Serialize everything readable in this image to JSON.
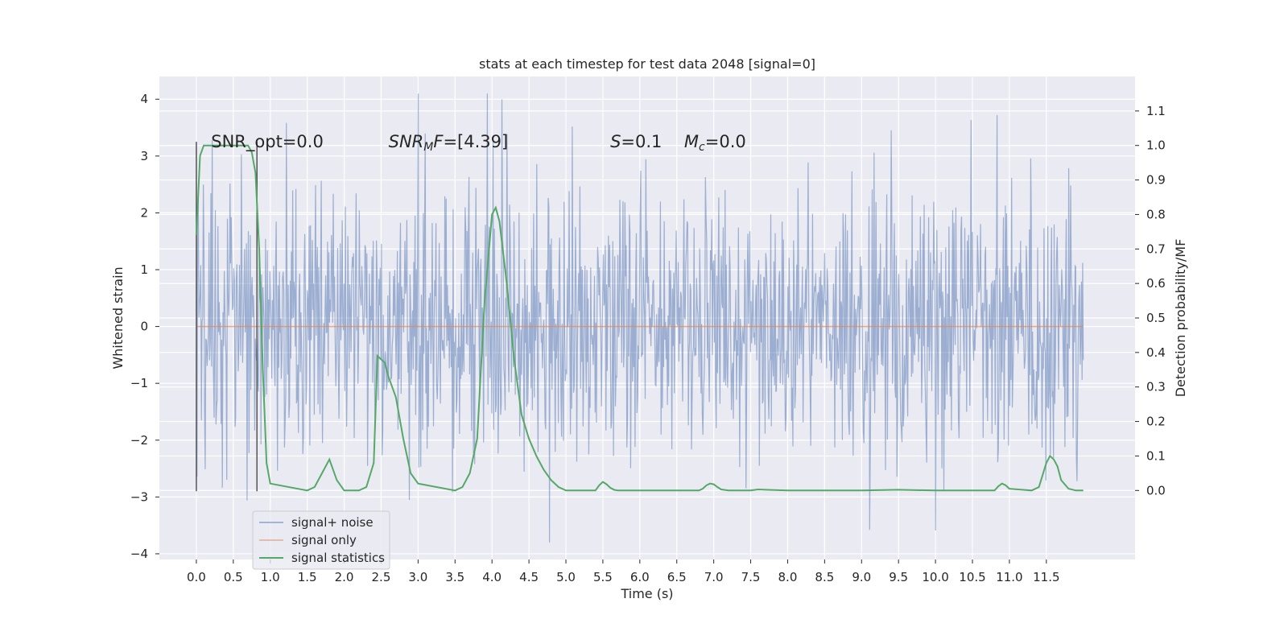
{
  "chart_data": {
    "type": "line",
    "title": "stats at each timestep for test data 2048 [signal=0]",
    "xlabel": "Time (s)",
    "ylabel": "Whitened strain",
    "y2label": "Detection probability/MF",
    "xlim": [
      -0.5,
      12.7
    ],
    "ylim": [
      -4.1,
      4.4
    ],
    "y2lim": [
      -0.2,
      1.2
    ],
    "x_ticks": [
      0.0,
      0.5,
      1.0,
      1.5,
      2.0,
      2.5,
      3.0,
      3.5,
      4.0,
      4.5,
      5.0,
      5.5,
      6.0,
      6.5,
      7.0,
      7.5,
      8.0,
      8.5,
      9.0,
      9.5,
      10.0,
      10.5,
      11.0,
      11.5
    ],
    "x_tick_labels": [
      "0.0",
      "0.5",
      "1.0",
      "1.5",
      "2.0",
      "2.5",
      "3.0",
      "3.5",
      "4.0",
      "4.5",
      "5.0",
      "5.5",
      "6.0",
      "6.5",
      "7.0",
      "7.5",
      "8.0",
      "8.5",
      "9.0",
      "9.5",
      "10.0",
      "10.5",
      "11.0",
      "11.5"
    ],
    "y_ticks": [
      4,
      3,
      2,
      1,
      0,
      -1,
      -2,
      -3,
      -4
    ],
    "y_tick_labels": [
      "4",
      "3",
      "2",
      "1",
      "0",
      "−1",
      "−2",
      "−3",
      "−4"
    ],
    "y2_ticks": [
      1.1,
      1.0,
      0.9,
      0.8,
      0.7,
      0.6,
      0.5,
      0.4,
      0.3,
      0.2,
      0.1,
      0.0
    ],
    "y2_tick_labels": [
      "1.1",
      "1.0",
      "0.9",
      "0.8",
      "0.7",
      "0.6",
      "0.5",
      "0.4",
      "0.3",
      "0.2",
      "0.1",
      "0.0"
    ],
    "grid": true,
    "legend_position": "lower-left",
    "noise_series": {
      "name": "signal+ noise",
      "color": "#4c72b0",
      "t_start": 0.0,
      "t_end": 12.0,
      "samples": 1400,
      "std": 1.25
    },
    "signal_only": {
      "name": "signal only",
      "color": "#dd8452",
      "value": 0
    },
    "statistics_series": {
      "name": "signal statistics",
      "color": "#55a868",
      "x": [
        0.0,
        0.05,
        0.1,
        0.2,
        0.4,
        0.6,
        0.7,
        0.75,
        0.8,
        0.85,
        0.9,
        0.95,
        1.0,
        1.5,
        1.6,
        1.7,
        1.8,
        1.9,
        2.0,
        2.1,
        2.2,
        2.3,
        2.4,
        2.45,
        2.55,
        2.6,
        2.7,
        2.8,
        2.9,
        3.0,
        3.5,
        3.6,
        3.7,
        3.8,
        3.9,
        4.0,
        4.05,
        4.1,
        4.2,
        4.3,
        4.4,
        4.5,
        4.6,
        4.7,
        4.8,
        4.9,
        5.0,
        5.2,
        5.4,
        5.45,
        5.5,
        5.55,
        5.6,
        5.65,
        5.7,
        6.0,
        6.8,
        6.85,
        6.9,
        6.95,
        7.0,
        7.05,
        7.1,
        7.2,
        7.5,
        7.6,
        7.7,
        8.0,
        9.0,
        9.5,
        10.0,
        10.5,
        10.8,
        10.85,
        10.9,
        10.95,
        11.0,
        11.3,
        11.4,
        11.5,
        11.55,
        11.6,
        11.65,
        11.7,
        11.8,
        11.9,
        12.0
      ],
      "y": [
        0.74,
        0.97,
        1.0,
        1.0,
        1.0,
        1.0,
        1.0,
        0.98,
        0.92,
        0.7,
        0.35,
        0.08,
        0.02,
        0.0,
        0.01,
        0.05,
        0.09,
        0.03,
        0.0,
        0.0,
        0.0,
        0.01,
        0.08,
        0.39,
        0.37,
        0.33,
        0.27,
        0.15,
        0.05,
        0.02,
        0.0,
        0.01,
        0.05,
        0.15,
        0.55,
        0.8,
        0.82,
        0.78,
        0.6,
        0.38,
        0.22,
        0.15,
        0.1,
        0.06,
        0.03,
        0.01,
        0.0,
        0.0,
        0.0,
        0.015,
        0.025,
        0.018,
        0.008,
        0.002,
        0.0,
        0.0,
        0.0,
        0.005,
        0.015,
        0.02,
        0.018,
        0.01,
        0.003,
        0.0,
        0.0,
        0.003,
        0.002,
        0.0,
        0.0,
        0.002,
        0.0,
        0.0,
        0.0,
        0.012,
        0.02,
        0.015,
        0.005,
        0.0,
        0.01,
        0.08,
        0.1,
        0.09,
        0.07,
        0.03,
        0.005,
        0.0,
        0.0
      ]
    },
    "markers": [
      {
        "name": "onset marker",
        "x": 0.0,
        "y_from": -2.9,
        "y_to": 3.25,
        "color": "#555555"
      },
      {
        "name": "end marker",
        "x": 0.82,
        "y_from": -2.9,
        "y_to": 3.25,
        "color": "#555555"
      }
    ],
    "annotations": [
      {
        "key": "snr_opt",
        "text": "SNR_opt=0.0",
        "x": 0.2,
        "y": 3.25
      },
      {
        "key": "snr_mf",
        "text": "SNRMF=[4.39]",
        "x": 2.6,
        "y": 3.25
      },
      {
        "key": "s",
        "text": "S=0.1",
        "x": 5.6,
        "y": 3.25
      },
      {
        "key": "mc",
        "text": "Mc=0.0",
        "x": 6.6,
        "y": 3.25
      }
    ],
    "legend": [
      {
        "label": "signal+ noise",
        "color": "#4c72b0"
      },
      {
        "label": "signal only",
        "color": "#dd8452"
      },
      {
        "label": "signal statistics",
        "color": "#55a868"
      }
    ]
  }
}
